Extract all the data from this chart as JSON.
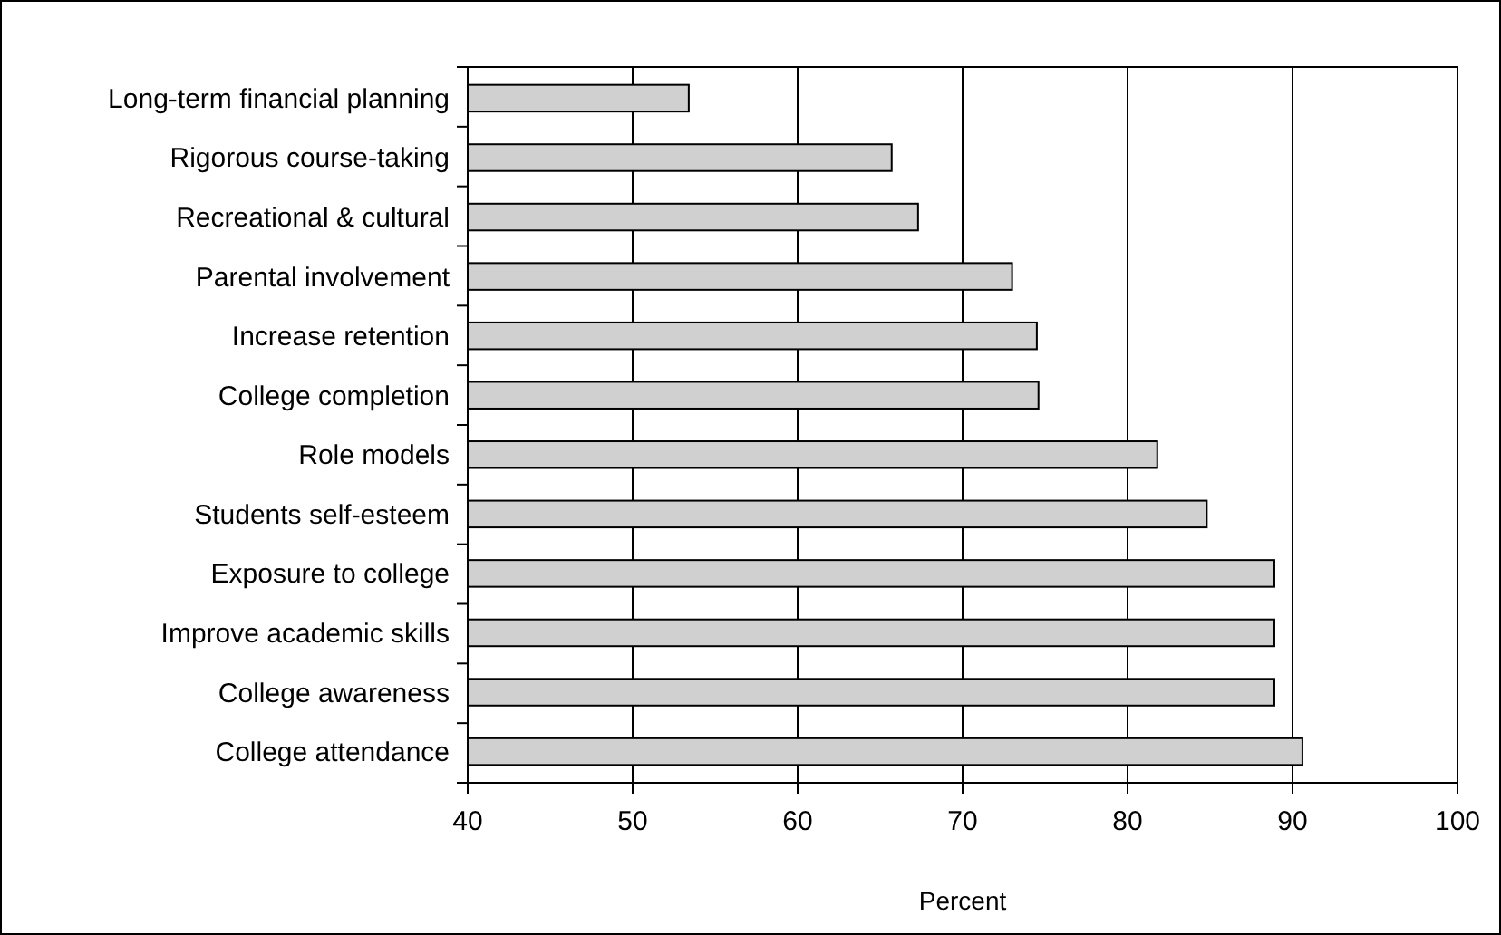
{
  "chart_data": {
    "type": "bar",
    "orientation": "horizontal",
    "xlabel": "Percent",
    "categories": [
      "Long-term financial planning",
      "Rigorous course-taking",
      "Recreational & cultural",
      "Parental involvement",
      "Increase retention",
      "College completion",
      "Role models",
      "Students self-esteem",
      "Exposure to college",
      "Improve academic skills",
      "College awareness",
      "College attendance"
    ],
    "values": [
      53.4,
      65.7,
      67.3,
      73.0,
      74.5,
      74.6,
      81.8,
      84.8,
      88.9,
      88.9,
      88.9,
      90.6
    ],
    "color": "#d0d0d0",
    "xlim": [
      40,
      100
    ],
    "xticks": [
      40,
      50,
      60,
      70,
      80,
      90,
      100
    ],
    "grid": "x"
  }
}
